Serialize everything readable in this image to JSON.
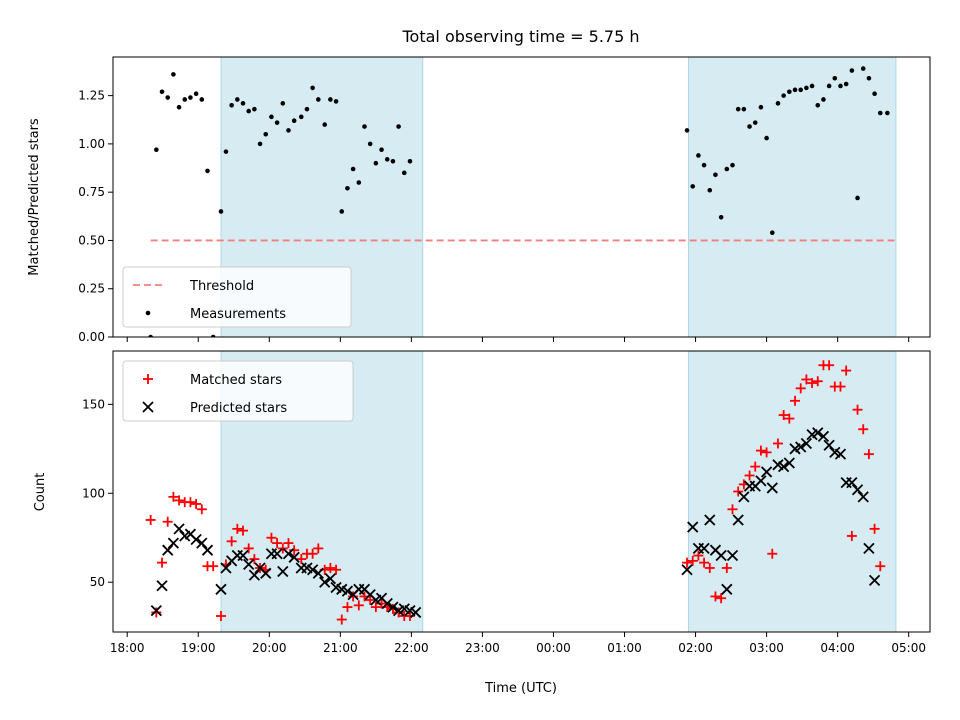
{
  "chart_data": {
    "type": "scatter",
    "title": "Total observing time = 5.75 h",
    "xlabel": "Time (UTC)",
    "x_tick_labels": [
      "18:00",
      "19:00",
      "20:00",
      "21:00",
      "22:00",
      "23:00",
      "00:00",
      "01:00",
      "02:00",
      "03:00",
      "04:00",
      "05:00"
    ],
    "x_range_hours": [
      17.8,
      29.3
    ],
    "shaded_intervals_hours": [
      [
        19.32,
        22.16
      ],
      [
        25.9,
        28.82
      ]
    ],
    "panels": [
      {
        "ylabel": "Matched/Predicted stars",
        "ylim": [
          0,
          1.45
        ],
        "y_tick_labels": [
          "0.00",
          "0.25",
          "0.50",
          "0.75",
          "1.00",
          "1.25"
        ],
        "y_ticks": [
          0,
          0.25,
          0.5,
          0.75,
          1.0,
          1.25
        ],
        "legend": [
          "Threshold",
          "Measurements"
        ],
        "legend_position": "lower-left",
        "threshold": {
          "name": "Threshold",
          "y": 0.5,
          "x_range": [
            18.33,
            28.8
          ],
          "color": "#f08080"
        },
        "measurements": {
          "name": "Measurements",
          "color": "#000000",
          "points": [
            [
              18.33,
              0.0
            ],
            [
              18.41,
              0.97
            ],
            [
              18.49,
              1.27
            ],
            [
              18.57,
              1.24
            ],
            [
              18.65,
              1.36
            ],
            [
              18.73,
              1.19
            ],
            [
              18.81,
              1.23
            ],
            [
              18.89,
              1.24
            ],
            [
              18.97,
              1.26
            ],
            [
              19.05,
              1.23
            ],
            [
              19.13,
              0.86
            ],
            [
              19.21,
              0.0
            ],
            [
              19.32,
              0.65
            ],
            [
              19.39,
              0.96
            ],
            [
              19.47,
              1.2
            ],
            [
              19.55,
              1.23
            ],
            [
              19.63,
              1.21
            ],
            [
              19.71,
              1.17
            ],
            [
              19.79,
              1.18
            ],
            [
              19.87,
              1.0
            ],
            [
              19.95,
              1.05
            ],
            [
              20.03,
              1.14
            ],
            [
              20.11,
              1.11
            ],
            [
              20.19,
              1.21
            ],
            [
              20.27,
              1.07
            ],
            [
              20.35,
              1.12
            ],
            [
              20.45,
              1.14
            ],
            [
              20.53,
              1.18
            ],
            [
              20.61,
              1.29
            ],
            [
              20.69,
              1.23
            ],
            [
              20.78,
              1.1
            ],
            [
              20.86,
              1.23
            ],
            [
              20.94,
              1.22
            ],
            [
              21.02,
              0.65
            ],
            [
              21.1,
              0.77
            ],
            [
              21.18,
              0.87
            ],
            [
              21.26,
              0.8
            ],
            [
              21.34,
              1.09
            ],
            [
              21.42,
              1.0
            ],
            [
              21.5,
              0.9
            ],
            [
              21.58,
              0.97
            ],
            [
              21.66,
              0.92
            ],
            [
              21.74,
              0.91
            ],
            [
              21.82,
              1.09
            ],
            [
              21.9,
              0.85
            ],
            [
              21.98,
              0.91
            ],
            [
              25.88,
              1.07
            ],
            [
              25.96,
              0.78
            ],
            [
              26.04,
              0.94
            ],
            [
              26.12,
              0.89
            ],
            [
              26.2,
              0.76
            ],
            [
              26.28,
              0.84
            ],
            [
              26.36,
              0.62
            ],
            [
              26.44,
              0.87
            ],
            [
              26.52,
              0.89
            ],
            [
              26.6,
              1.18
            ],
            [
              26.68,
              1.18
            ],
            [
              26.76,
              1.09
            ],
            [
              26.84,
              1.11
            ],
            [
              26.92,
              1.19
            ],
            [
              27.0,
              1.03
            ],
            [
              27.08,
              0.54
            ],
            [
              27.16,
              1.21
            ],
            [
              27.24,
              1.25
            ],
            [
              27.32,
              1.27
            ],
            [
              27.4,
              1.28
            ],
            [
              27.48,
              1.28
            ],
            [
              27.56,
              1.29
            ],
            [
              27.64,
              1.3
            ],
            [
              27.72,
              1.2
            ],
            [
              27.8,
              1.23
            ],
            [
              27.88,
              1.3
            ],
            [
              27.96,
              1.34
            ],
            [
              28.04,
              1.3
            ],
            [
              28.12,
              1.31
            ],
            [
              28.2,
              1.38
            ],
            [
              28.28,
              0.72
            ],
            [
              28.36,
              1.39
            ],
            [
              28.44,
              1.34
            ],
            [
              28.52,
              1.26
            ],
            [
              28.6,
              1.16
            ],
            [
              28.7,
              1.16
            ]
          ]
        }
      },
      {
        "ylabel": "Count",
        "ylim": [
          22,
          180
        ],
        "y_tick_labels": [
          "50",
          "100",
          "150"
        ],
        "y_ticks": [
          50,
          100,
          150
        ],
        "legend": [
          "Matched stars",
          "Predicted stars"
        ],
        "legend_position": "top-left",
        "series": [
          {
            "name": "Matched stars",
            "marker": "+",
            "color": "#ff0000",
            "points": [
              [
                18.33,
                85
              ],
              [
                18.41,
                33
              ],
              [
                18.49,
                61
              ],
              [
                18.57,
                84
              ],
              [
                18.65,
                98
              ],
              [
                18.73,
                96
              ],
              [
                18.81,
                95
              ],
              [
                18.89,
                95
              ],
              [
                18.97,
                94
              ],
              [
                19.05,
                91
              ],
              [
                19.13,
                59
              ],
              [
                19.21,
                59
              ],
              [
                19.32,
                31
              ],
              [
                19.39,
                60
              ],
              [
                19.47,
                73
              ],
              [
                19.55,
                80
              ],
              [
                19.63,
                79
              ],
              [
                19.71,
                69
              ],
              [
                19.79,
                63
              ],
              [
                19.87,
                58
              ],
              [
                19.95,
                57
              ],
              [
                20.03,
                75
              ],
              [
                20.11,
                72
              ],
              [
                20.19,
                69
              ],
              [
                20.27,
                72
              ],
              [
                20.35,
                68
              ],
              [
                20.45,
                63
              ],
              [
                20.53,
                66
              ],
              [
                20.61,
                66
              ],
              [
                20.69,
                69
              ],
              [
                20.78,
                57
              ],
              [
                20.86,
                58
              ],
              [
                20.94,
                57
              ],
              [
                21.02,
                29
              ],
              [
                21.1,
                36
              ],
              [
                21.18,
                42
              ],
              [
                21.26,
                37
              ],
              [
                21.34,
                42
              ],
              [
                21.42,
                40
              ],
              [
                21.5,
                36
              ],
              [
                21.58,
                38
              ],
              [
                21.66,
                36
              ],
              [
                21.74,
                35
              ],
              [
                21.82,
                33
              ],
              [
                21.9,
                31
              ],
              [
                21.98,
                31
              ],
              [
                25.88,
                61
              ],
              [
                25.96,
                62
              ],
              [
                26.04,
                65
              ],
              [
                26.12,
                61
              ],
              [
                26.2,
                58
              ],
              [
                26.28,
                42
              ],
              [
                26.36,
                41
              ],
              [
                26.44,
                58
              ],
              [
                26.52,
                91
              ],
              [
                26.6,
                101
              ],
              [
                26.68,
                105
              ],
              [
                26.76,
                110
              ],
              [
                26.84,
                115
              ],
              [
                26.92,
                124
              ],
              [
                27.0,
                123
              ],
              [
                27.08,
                66
              ],
              [
                27.16,
                128
              ],
              [
                27.24,
                144
              ],
              [
                27.32,
                142
              ],
              [
                27.4,
                152
              ],
              [
                27.48,
                159
              ],
              [
                27.56,
                164
              ],
              [
                27.64,
                162
              ],
              [
                27.72,
                163
              ],
              [
                27.8,
                172
              ],
              [
                27.88,
                172
              ],
              [
                27.96,
                160
              ],
              [
                28.04,
                160
              ],
              [
                28.12,
                169
              ],
              [
                28.2,
                76
              ],
              [
                28.28,
                147
              ],
              [
                28.36,
                136
              ],
              [
                28.44,
                122
              ],
              [
                28.52,
                80
              ],
              [
                28.6,
                59
              ]
            ]
          },
          {
            "name": "Predicted stars",
            "marker": "x",
            "color": "#000000",
            "points": [
              [
                18.41,
                34
              ],
              [
                18.49,
                48
              ],
              [
                18.57,
                68
              ],
              [
                18.65,
                72
              ],
              [
                18.73,
                80
              ],
              [
                18.81,
                76
              ],
              [
                18.89,
                77
              ],
              [
                18.97,
                74
              ],
              [
                19.05,
                72
              ],
              [
                19.13,
                68
              ],
              [
                19.32,
                46
              ],
              [
                19.39,
                58
              ],
              [
                19.47,
                62
              ],
              [
                19.55,
                65
              ],
              [
                19.63,
                65
              ],
              [
                19.71,
                60
              ],
              [
                19.79,
                54
              ],
              [
                19.87,
                58
              ],
              [
                19.95,
                55
              ],
              [
                20.03,
                66
              ],
              [
                20.11,
                66
              ],
              [
                20.19,
                56
              ],
              [
                20.27,
                66
              ],
              [
                20.35,
                64
              ],
              [
                20.45,
                58
              ],
              [
                20.53,
                58
              ],
              [
                20.61,
                57
              ],
              [
                20.69,
                55
              ],
              [
                20.78,
                50
              ],
              [
                20.86,
                52
              ],
              [
                20.94,
                47
              ],
              [
                21.02,
                46
              ],
              [
                21.1,
                45
              ],
              [
                21.18,
                43
              ],
              [
                21.26,
                46
              ],
              [
                21.34,
                46
              ],
              [
                21.42,
                43
              ],
              [
                21.5,
                40
              ],
              [
                21.58,
                41
              ],
              [
                21.66,
                38
              ],
              [
                21.74,
                36
              ],
              [
                21.82,
                34
              ],
              [
                21.9,
                35
              ],
              [
                21.98,
                34
              ],
              [
                22.06,
                33
              ],
              [
                25.88,
                57
              ],
              [
                25.96,
                81
              ],
              [
                26.04,
                69
              ],
              [
                26.12,
                69
              ],
              [
                26.2,
                85
              ],
              [
                26.28,
                68
              ],
              [
                26.36,
                65
              ],
              [
                26.44,
                46
              ],
              [
                26.52,
                65
              ],
              [
                26.6,
                85
              ],
              [
                26.68,
                98
              ],
              [
                26.76,
                104
              ],
              [
                26.84,
                104
              ],
              [
                26.92,
                107
              ],
              [
                27.0,
                112
              ],
              [
                27.08,
                103
              ],
              [
                27.16,
                116
              ],
              [
                27.24,
                115
              ],
              [
                27.32,
                117
              ],
              [
                27.4,
                125
              ],
              [
                27.48,
                126
              ],
              [
                27.56,
                128
              ],
              [
                27.64,
                133
              ],
              [
                27.72,
                134
              ],
              [
                27.8,
                132
              ],
              [
                27.88,
                127
              ],
              [
                27.96,
                123
              ],
              [
                28.04,
                122
              ],
              [
                28.12,
                106
              ],
              [
                28.2,
                106
              ],
              [
                28.28,
                102
              ],
              [
                28.36,
                98
              ],
              [
                28.44,
                69
              ],
              [
                28.52,
                51
              ]
            ]
          }
        ]
      }
    ]
  }
}
